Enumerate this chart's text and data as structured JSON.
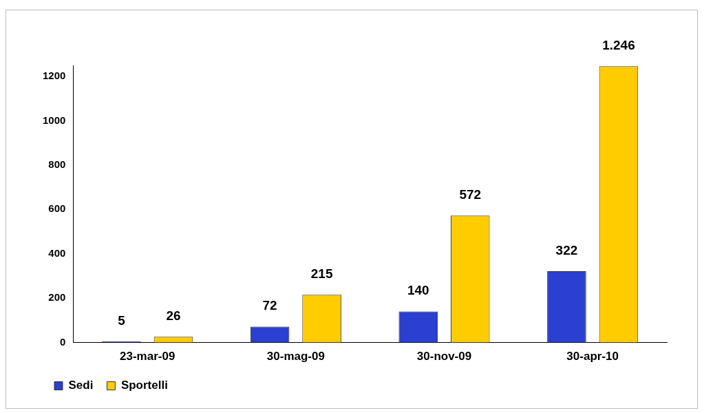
{
  "chart_data": {
    "type": "bar",
    "categories": [
      "23-mar-09",
      "30-mag-09",
      "30-nov-09",
      "30-apr-10"
    ],
    "series": [
      {
        "name": "Sedi",
        "color": "#2b3fd1",
        "values": [
          5,
          72,
          140,
          322
        ],
        "value_labels": [
          "5",
          "72",
          "140",
          "322"
        ]
      },
      {
        "name": "Sportelli",
        "color": "#ffcc00",
        "values": [
          26,
          215,
          572,
          1246
        ],
        "value_labels": [
          "26",
          "215",
          "572",
          "1.246"
        ]
      }
    ],
    "ylim": [
      0,
      1250
    ],
    "yticks": [
      0,
      200,
      400,
      600,
      800,
      1000,
      1200
    ],
    "grid": false,
    "legend": "bottom left"
  }
}
